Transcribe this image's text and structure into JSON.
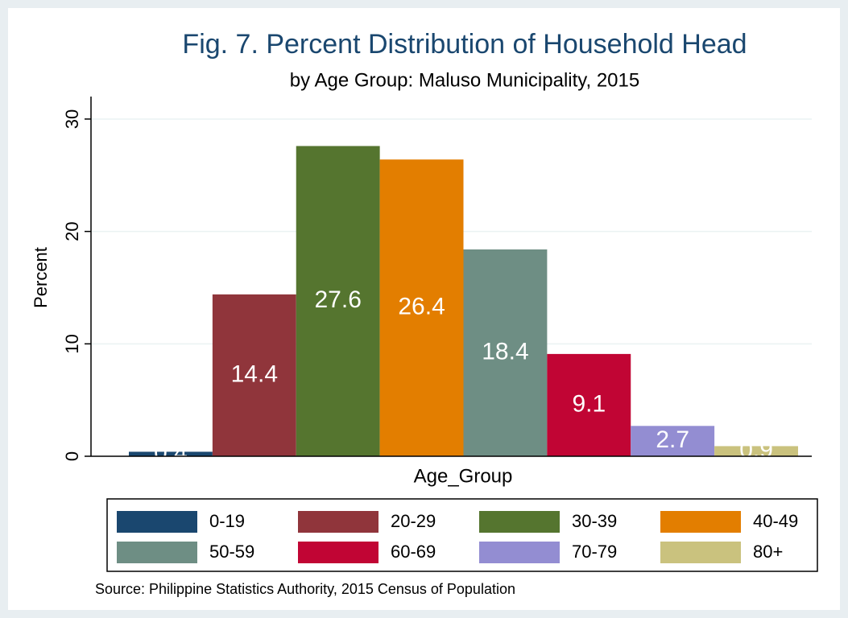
{
  "chart_data": {
    "type": "bar",
    "title": "Fig. 7. Percent Distribution of Household Head",
    "subtitle": "by Age Group: Maluso Municipality, 2015",
    "y_label": "Percent",
    "x_label": "Age_Group",
    "source": "Source: Philippine Statistics Authority, 2015 Census of Population",
    "ylim": [
      0,
      32
    ],
    "yticks": [
      0,
      10,
      20,
      30
    ],
    "grid": true,
    "series": [
      {
        "name": "0-19",
        "color": "#1a476f",
        "values": [
          0.4
        ]
      },
      {
        "name": "20-29",
        "color": "#90353b",
        "values": [
          14.4
        ]
      },
      {
        "name": "30-39",
        "color": "#55752f",
        "values": [
          27.6
        ]
      },
      {
        "name": "40-49",
        "color": "#e37e00",
        "values": [
          26.4
        ]
      },
      {
        "name": "50-59",
        "color": "#6e8e84",
        "values": [
          18.4
        ]
      },
      {
        "name": "60-69",
        "color": "#c10534",
        "values": [
          9.1
        ]
      },
      {
        "name": "70-79",
        "color": "#938dd2",
        "values": [
          2.7
        ]
      },
      {
        "name": "80+",
        "color": "#cac27e",
        "values": [
          0.9
        ]
      }
    ]
  }
}
